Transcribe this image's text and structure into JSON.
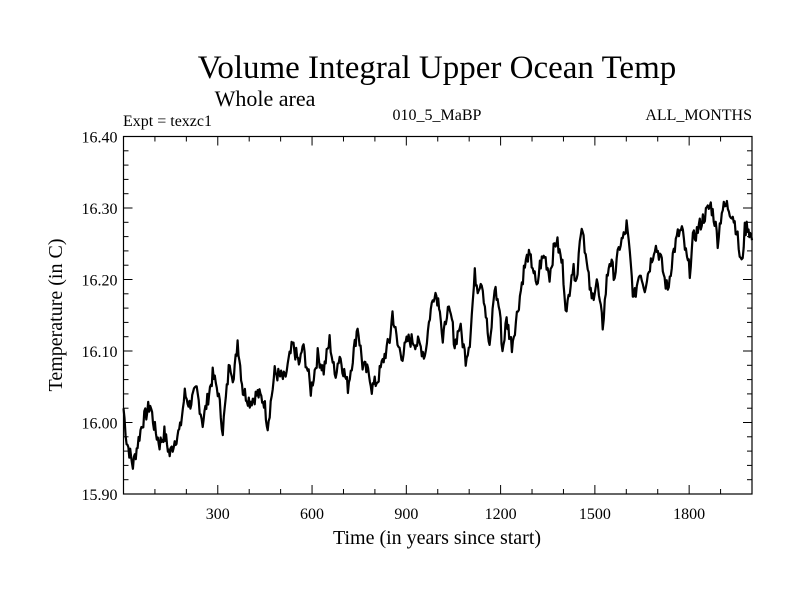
{
  "chart_data": {
    "type": "line",
    "title": "Volume Integral Upper Ocean Temp",
    "subtitle": "Whole area",
    "annotations": {
      "left": "Expt = texzc1",
      "center": "010_5_MaBP",
      "right": "ALL_MONTHS"
    },
    "xlabel": "Time (in years since start)",
    "ylabel": "Temperature (in C)",
    "xlim": [
      0,
      2000
    ],
    "ylim": [
      15.9,
      16.4
    ],
    "xticks_major": [
      300,
      600,
      900,
      1200,
      1500,
      1800
    ],
    "xtick_labels": [
      "300",
      "600",
      "900",
      "1200",
      "1500",
      "1800"
    ],
    "xticks_minor_step": 100,
    "yticks_major": [
      15.9,
      16.0,
      16.1,
      16.2,
      16.3,
      16.4
    ],
    "ytick_labels": [
      "15.90",
      "16.00",
      "16.10",
      "16.20",
      "16.30",
      "16.40"
    ],
    "yticks_minor_step": 0.02,
    "grid": false,
    "legend": "none",
    "series": [
      {
        "name": "texzc1",
        "color": "#000000",
        "x": [
          0,
          10,
          30,
          45,
          60,
          85,
          100,
          115,
          130,
          147,
          163,
          180,
          195,
          210,
          233,
          252,
          284,
          300,
          316,
          338,
          351,
          363,
          380,
          402,
          427,
          447,
          459,
          481,
          513,
          538,
          561,
          570,
          586,
          596,
          618,
          637,
          656,
          672,
          688,
          714,
          736,
          745,
          761,
          784,
          790,
          809,
          831,
          847,
          856,
          872,
          888,
          904,
          920,
          943,
          959,
          975,
          990,
          1007,
          1016,
          1029,
          1045,
          1054,
          1070,
          1089,
          1102,
          1118,
          1127,
          1140,
          1150,
          1165,
          1181,
          1197,
          1206,
          1219,
          1236,
          1252,
          1274,
          1287,
          1302,
          1315,
          1325,
          1340,
          1356,
          1372,
          1378,
          1397,
          1410,
          1426,
          1445,
          1452,
          1461,
          1474,
          1490,
          1506,
          1516,
          1525,
          1538,
          1547,
          1563,
          1579,
          1595,
          1601,
          1611,
          1624,
          1643,
          1659,
          1675,
          1691,
          1707,
          1722,
          1732,
          1748,
          1764,
          1777,
          1793,
          1802,
          1812,
          1834,
          1850,
          1869,
          1881,
          1891,
          1904,
          1920,
          1939,
          1951,
          1961,
          1967,
          1977,
          1986,
          2000
        ],
        "y": [
          16.02,
          15.975,
          15.94,
          15.97,
          16.0,
          16.025,
          15.99,
          15.97,
          15.985,
          15.955,
          15.975,
          15.99,
          16.04,
          16.025,
          16.045,
          16.0,
          16.066,
          16.045,
          15.99,
          16.087,
          16.06,
          16.115,
          16.045,
          16.03,
          16.04,
          16.03,
          15.996,
          16.07,
          16.06,
          16.108,
          16.08,
          16.108,
          16.073,
          16.045,
          16.094,
          16.073,
          16.115,
          16.066,
          16.094,
          16.05,
          16.108,
          16.136,
          16.08,
          16.066,
          16.048,
          16.06,
          16.094,
          16.115,
          16.154,
          16.108,
          16.094,
          16.115,
          16.115,
          16.108,
          16.094,
          16.15,
          16.185,
          16.164,
          16.108,
          16.157,
          16.143,
          16.108,
          16.136,
          16.09,
          16.115,
          16.206,
          16.19,
          16.2,
          16.164,
          16.1,
          16.19,
          16.157,
          16.1,
          16.143,
          16.108,
          16.15,
          16.213,
          16.234,
          16.22,
          16.185,
          16.22,
          16.234,
          16.206,
          16.248,
          16.255,
          16.22,
          16.15,
          16.213,
          16.206,
          16.262,
          16.276,
          16.22,
          16.17,
          16.2,
          16.164,
          16.136,
          16.2,
          16.227,
          16.206,
          16.248,
          16.262,
          16.276,
          16.234,
          16.17,
          16.213,
          16.19,
          16.22,
          16.248,
          16.234,
          16.2,
          16.185,
          16.234,
          16.262,
          16.269,
          16.227,
          16.213,
          16.255,
          16.276,
          16.29,
          16.304,
          16.283,
          16.255,
          16.297,
          16.304,
          16.29,
          16.269,
          16.234,
          16.22,
          16.269,
          16.276,
          16.255
        ]
      }
    ]
  }
}
